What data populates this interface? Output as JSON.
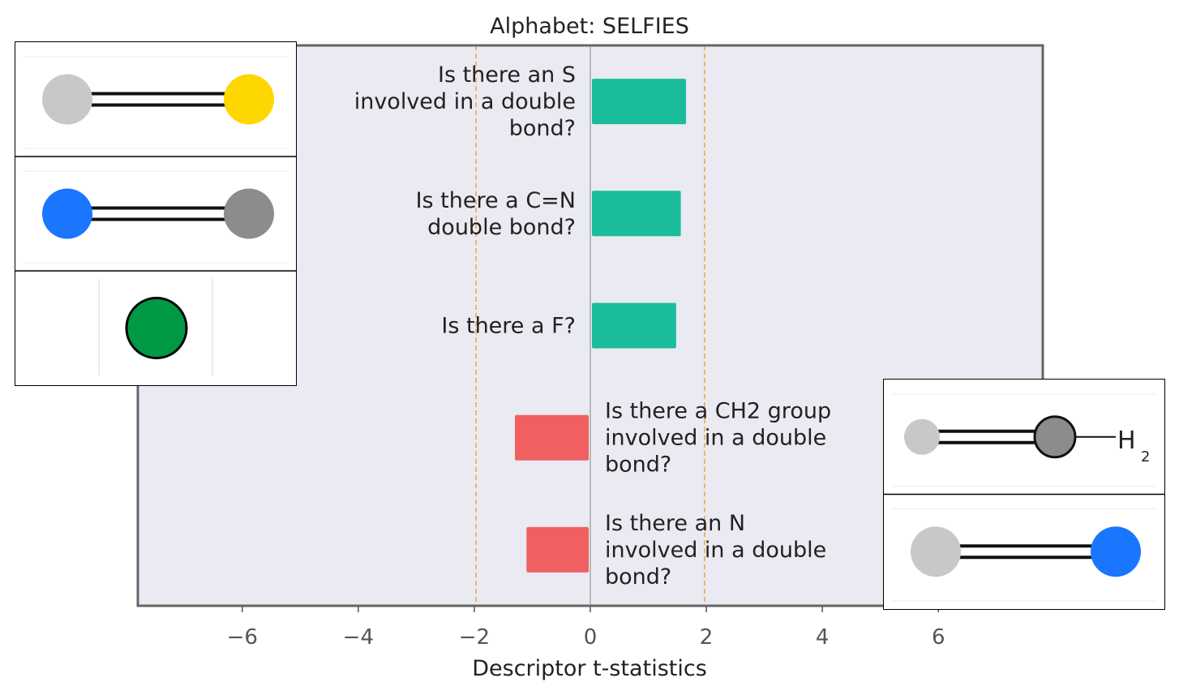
{
  "chart_data": {
    "type": "bar",
    "orientation": "horizontal",
    "title": "Alphabet: SELFIES",
    "xlabel": "Descriptor t-statistics",
    "ylabel": "",
    "xlim": [
      -7.8,
      7.8
    ],
    "xticks": [
      -6,
      -4,
      -2,
      0,
      2,
      4,
      6
    ],
    "xtick_labels": [
      "−6",
      "−4",
      "−2",
      "0",
      "2",
      "4",
      "6"
    ],
    "significance_lines": [
      -1.97,
      1.97
    ],
    "grid": false,
    "categories": [
      [
        "Is there an S",
        "involved in a double",
        "bond?"
      ],
      [
        "Is there a C=N",
        "double bond?"
      ],
      [
        "Is there a F?"
      ],
      [
        "Is there a CH2 group",
        "involved in a double",
        "bond?"
      ],
      [
        "Is there an N",
        "involved in a double",
        "bond?"
      ]
    ],
    "values": [
      1.65,
      1.56,
      1.48,
      -1.3,
      -1.1
    ],
    "colors": {
      "positive": "#1abc9c",
      "negative": "#f06060",
      "plot_background": "#eaeaf2",
      "significance_line": "#f5a742",
      "frame": "#666666"
    }
  },
  "molecules": {
    "left": [
      {
        "atoms": [
          {
            "element": "C",
            "color": "#c8c8c8"
          },
          {
            "element": "S",
            "color": "#ffd700"
          }
        ],
        "bond": "double"
      },
      {
        "atoms": [
          {
            "element": "N",
            "color": "#1a75ff"
          },
          {
            "element": "C",
            "color": "#8c8c8c"
          }
        ],
        "bond": "double"
      },
      {
        "atoms": [
          {
            "element": "F",
            "color": "#009944"
          }
        ],
        "bond": "none"
      }
    ],
    "right": [
      {
        "atoms": [
          {
            "element": "C",
            "color": "#c8c8c8"
          },
          {
            "element": "C",
            "color": "#8c8c8c"
          }
        ],
        "bond": "double",
        "suffix": "H",
        "suffix_sub": "2"
      },
      {
        "atoms": [
          {
            "element": "C",
            "color": "#c8c8c8"
          },
          {
            "element": "N",
            "color": "#1a75ff"
          }
        ],
        "bond": "double"
      }
    ]
  }
}
